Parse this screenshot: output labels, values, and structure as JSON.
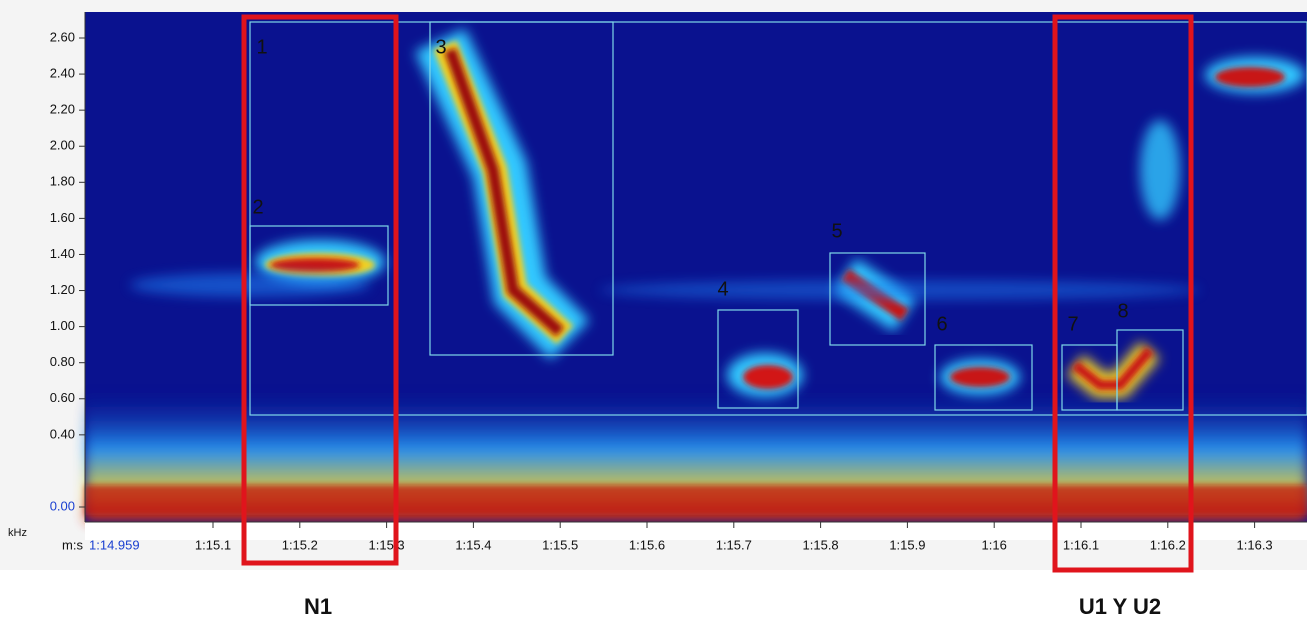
{
  "y_axis": {
    "unit": "kHz",
    "ticks": [
      "2.60",
      "2.40",
      "2.20",
      "2.00",
      "1.80",
      "1.60",
      "1.40",
      "1.20",
      "1.00",
      "0.80",
      "0.60",
      "0.40",
      "0.00"
    ]
  },
  "x_axis": {
    "prefix": "m:s",
    "start": "1:14.959",
    "ticks": [
      "1:15.1",
      "1:15.2",
      "1:15.3",
      "1:15.4",
      "1:15.5",
      "1:15.6",
      "1:15.7",
      "1:15.8",
      "1:15.9",
      "1:16",
      "1:16.1",
      "1:16.2",
      "1:16.3"
    ]
  },
  "selections": [
    "1",
    "2",
    "3",
    "4",
    "5",
    "6",
    "7",
    "8"
  ],
  "groups": [
    {
      "label": "N1"
    },
    {
      "label": "U1 Y U2"
    }
  ]
}
